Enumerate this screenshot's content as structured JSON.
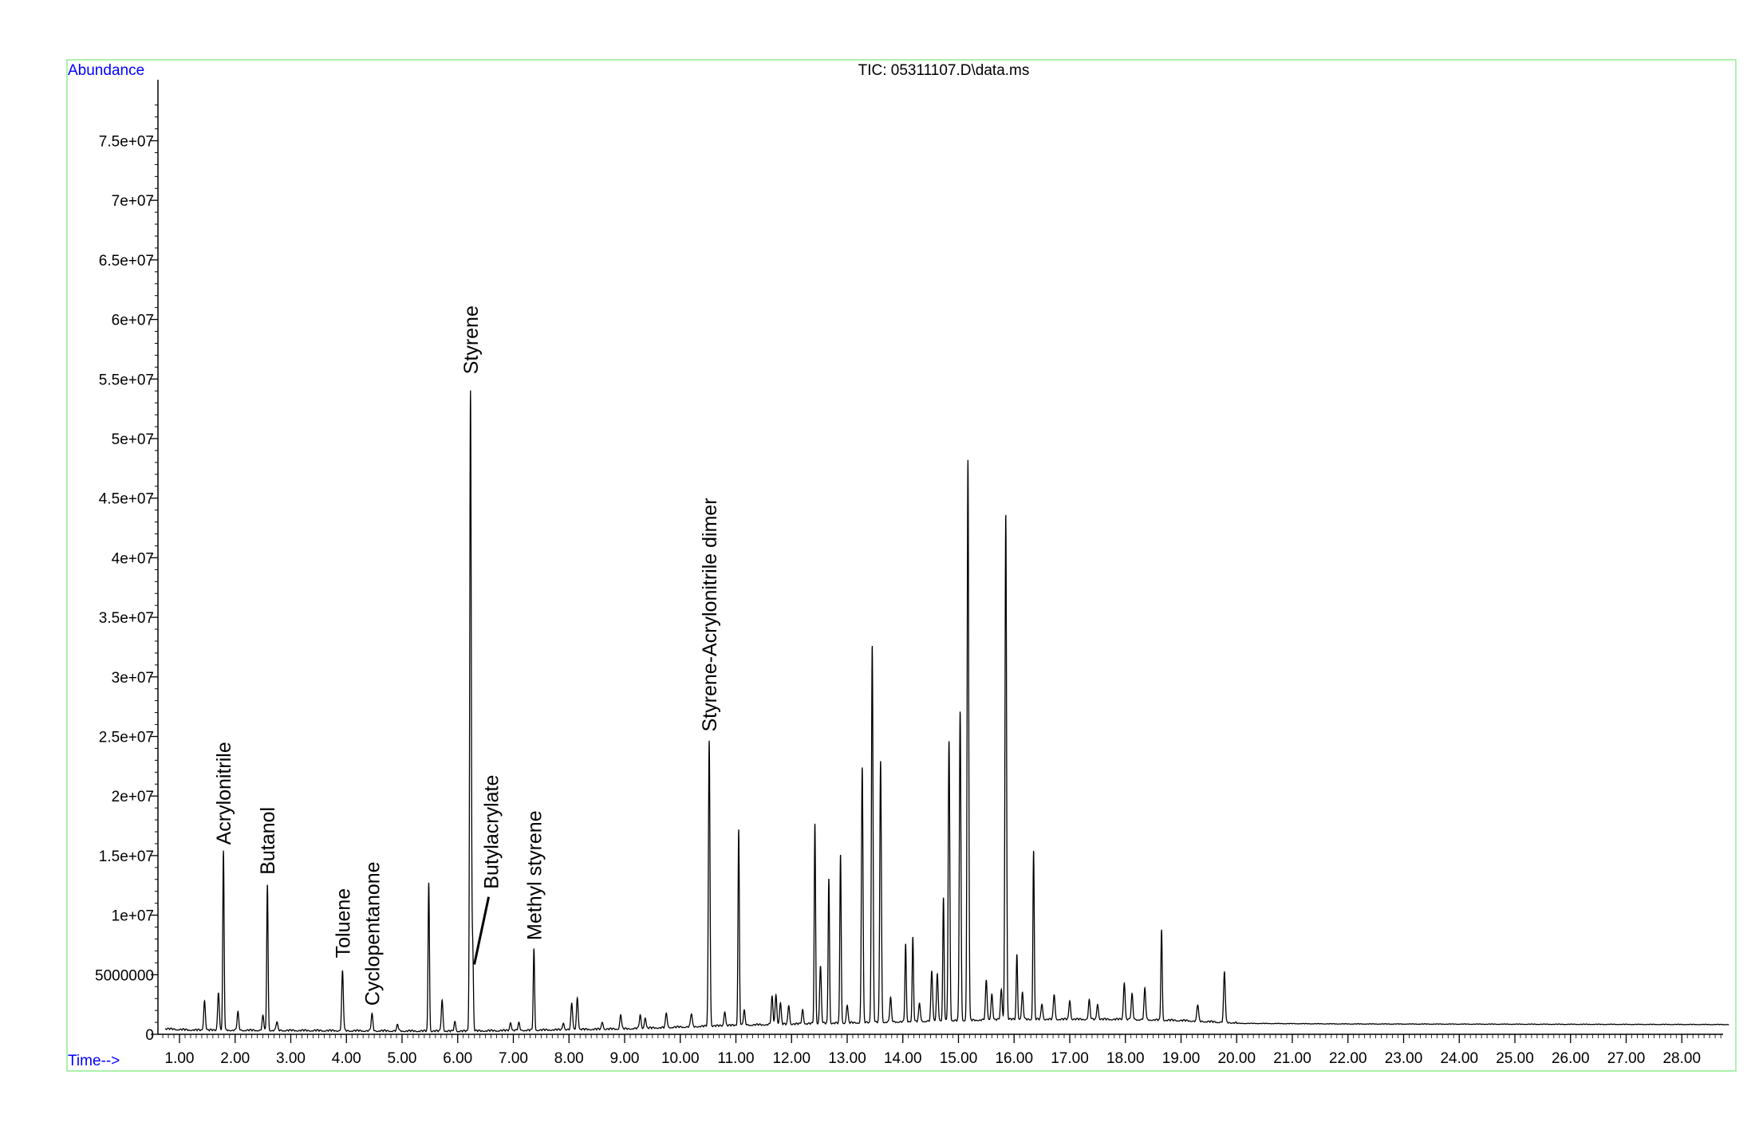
{
  "chart_data": {
    "type": "line",
    "title": "TIC: 05311107.D\\data.ms",
    "ylabel": "Abundance",
    "xlabel": "Time-->",
    "xlim": [
      0.5,
      28.85
    ],
    "ylim": [
      0,
      80000000
    ],
    "grid": false,
    "legend": "none",
    "x_ticks": [
      1,
      2,
      3,
      4,
      5,
      6,
      7,
      8,
      9,
      10,
      11,
      12,
      13,
      14,
      15,
      16,
      17,
      18,
      19,
      20,
      21,
      22,
      23,
      24,
      25,
      26,
      27,
      28
    ],
    "x_tick_labels": [
      "1.00",
      "2.00",
      "3.00",
      "4.00",
      "5.00",
      "6.00",
      "7.00",
      "8.00",
      "9.00",
      "10.00",
      "11.00",
      "12.00",
      "13.00",
      "14.00",
      "15.00",
      "16.00",
      "17.00",
      "18.00",
      "19.00",
      "20.00",
      "21.00",
      "22.00",
      "23.00",
      "24.00",
      "25.00",
      "26.00",
      "27.00",
      "28.00"
    ],
    "y_ticks": [
      0,
      5000000,
      10000000,
      15000000,
      20000000,
      25000000,
      30000000,
      35000000,
      40000000,
      45000000,
      50000000,
      55000000,
      60000000,
      65000000,
      70000000,
      75000000
    ],
    "y_tick_labels": [
      "0",
      "5000000",
      "1e+07",
      "1.5e+07",
      "2e+07",
      "2.5e+07",
      "3e+07",
      "3.5e+07",
      "4e+07",
      "4.5e+07",
      "5e+07",
      "5.5e+07",
      "6e+07",
      "6.5e+07",
      "7e+07",
      "7.5e+07"
    ],
    "baseline": [
      [
        0.5,
        1000000
      ],
      [
        0.75,
        400000
      ],
      [
        1.2,
        300000
      ],
      [
        6,
        200000
      ],
      [
        9,
        400000
      ],
      [
        11,
        700000
      ],
      [
        13,
        900000
      ],
      [
        16,
        1200000
      ],
      [
        18,
        1200000
      ],
      [
        19,
        1100000
      ],
      [
        20,
        900000
      ],
      [
        22,
        850000
      ],
      [
        28.85,
        800000
      ]
    ],
    "peaks": [
      {
        "rt": 1.45,
        "height": 2500000
      },
      {
        "rt": 1.7,
        "height": 3200000
      },
      {
        "rt": 1.79,
        "height": 15000000
      },
      {
        "rt": 2.05,
        "height": 1500000
      },
      {
        "rt": 2.5,
        "height": 1200000
      },
      {
        "rt": 2.58,
        "height": 12300000
      },
      {
        "rt": 2.75,
        "height": 700000
      },
      {
        "rt": 3.93,
        "height": 5000000
      },
      {
        "rt": 4.46,
        "height": 1400000
      },
      {
        "rt": 4.92,
        "height": 500000
      },
      {
        "rt": 5.48,
        "height": 12500000
      },
      {
        "rt": 5.72,
        "height": 2600000
      },
      {
        "rt": 5.95,
        "height": 800000
      },
      {
        "rt": 6.23,
        "height": 53800000
      },
      {
        "rt": 6.27,
        "height": 6800000
      },
      {
        "rt": 6.95,
        "height": 700000
      },
      {
        "rt": 7.1,
        "height": 600000
      },
      {
        "rt": 7.37,
        "height": 6800000
      },
      {
        "rt": 7.9,
        "height": 600000
      },
      {
        "rt": 8.05,
        "height": 2200000
      },
      {
        "rt": 8.15,
        "height": 2700000
      },
      {
        "rt": 8.6,
        "height": 600000
      },
      {
        "rt": 8.93,
        "height": 1200000
      },
      {
        "rt": 9.28,
        "height": 1100000
      },
      {
        "rt": 9.37,
        "height": 900000
      },
      {
        "rt": 9.75,
        "height": 1200000
      },
      {
        "rt": 10.2,
        "height": 1100000
      },
      {
        "rt": 10.52,
        "height": 24000000
      },
      {
        "rt": 10.8,
        "height": 1200000
      },
      {
        "rt": 11.05,
        "height": 16500000
      },
      {
        "rt": 11.15,
        "height": 1200000
      },
      {
        "rt": 11.65,
        "height": 2300000
      },
      {
        "rt": 11.72,
        "height": 2500000
      },
      {
        "rt": 11.8,
        "height": 1800000
      },
      {
        "rt": 11.95,
        "height": 1600000
      },
      {
        "rt": 12.2,
        "height": 1200000
      },
      {
        "rt": 12.42,
        "height": 16800000
      },
      {
        "rt": 12.52,
        "height": 4800000
      },
      {
        "rt": 12.67,
        "height": 12200000
      },
      {
        "rt": 12.88,
        "height": 14200000
      },
      {
        "rt": 13.0,
        "height": 1500000
      },
      {
        "rt": 13.27,
        "height": 21500000
      },
      {
        "rt": 13.45,
        "height": 31700000
      },
      {
        "rt": 13.6,
        "height": 22000000
      },
      {
        "rt": 13.78,
        "height": 2000000
      },
      {
        "rt": 14.05,
        "height": 6500000
      },
      {
        "rt": 14.18,
        "height": 7100000
      },
      {
        "rt": 14.3,
        "height": 1500000
      },
      {
        "rt": 14.52,
        "height": 4200000
      },
      {
        "rt": 14.62,
        "height": 4000000
      },
      {
        "rt": 14.73,
        "height": 10300000
      },
      {
        "rt": 14.83,
        "height": 23500000
      },
      {
        "rt": 15.03,
        "height": 26000000
      },
      {
        "rt": 15.17,
        "height": 47000000
      },
      {
        "rt": 15.5,
        "height": 3300000
      },
      {
        "rt": 15.6,
        "height": 2200000
      },
      {
        "rt": 15.77,
        "height": 2500000
      },
      {
        "rt": 15.85,
        "height": 42500000
      },
      {
        "rt": 16.05,
        "height": 5500000
      },
      {
        "rt": 16.15,
        "height": 2200000
      },
      {
        "rt": 16.35,
        "height": 14200000
      },
      {
        "rt": 16.5,
        "height": 1300000
      },
      {
        "rt": 16.72,
        "height": 2100000
      },
      {
        "rt": 17.0,
        "height": 1600000
      },
      {
        "rt": 17.35,
        "height": 1600000
      },
      {
        "rt": 17.5,
        "height": 1300000
      },
      {
        "rt": 17.98,
        "height": 3100000
      },
      {
        "rt": 18.12,
        "height": 2100000
      },
      {
        "rt": 18.35,
        "height": 2600000
      },
      {
        "rt": 18.65,
        "height": 7600000
      },
      {
        "rt": 19.3,
        "height": 1400000
      },
      {
        "rt": 19.78,
        "height": 4200000
      }
    ],
    "annotations": [
      {
        "text": "Acrylonitrile",
        "x": 1.79,
        "y": 15500000
      },
      {
        "text": "Butanol",
        "x": 2.58,
        "y": 13000000
      },
      {
        "text": "Toluene",
        "x": 3.93,
        "y": 6000000
      },
      {
        "text": "Cyclopentanone",
        "x": 4.46,
        "y": 2000000
      },
      {
        "text": "Styrene",
        "x": 6.23,
        "y": 55000000
      },
      {
        "text": "Butylacrylate",
        "x": 6.6,
        "y": 11800000
      },
      {
        "text": "Methyl styrene",
        "x": 7.37,
        "y": 7500000
      },
      {
        "text": "Styrene-Acrylonitrile dimer",
        "x": 10.52,
        "y": 25000000
      }
    ],
    "colors": {
      "frame": "#90ee90",
      "axis_label": "#0000ff",
      "trace": "#000000"
    }
  }
}
